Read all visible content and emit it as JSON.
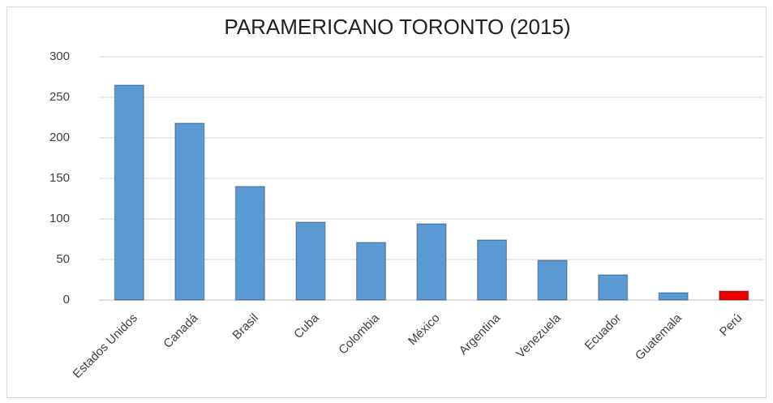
{
  "chart_data": {
    "type": "bar",
    "title": "PARAMERICANO TORONTO (2015)",
    "categories": [
      "Estados Unidos",
      "Canadá",
      "Brasil",
      "Cuba",
      "Colombia",
      "México",
      "Argentina",
      "Venezuela",
      "Ecuador",
      "Guatemala",
      "Perú"
    ],
    "values": [
      265,
      218,
      140,
      96,
      71,
      94,
      74,
      49,
      31,
      9,
      11
    ],
    "colors": [
      "#5b9bd5",
      "#5b9bd5",
      "#5b9bd5",
      "#5b9bd5",
      "#5b9bd5",
      "#5b9bd5",
      "#5b9bd5",
      "#5b9bd5",
      "#5b9bd5",
      "#5b9bd5",
      "#ee0000"
    ],
    "ylim": [
      0,
      300
    ],
    "yticks": [
      0,
      50,
      100,
      150,
      200,
      250,
      300
    ],
    "grid": true
  }
}
